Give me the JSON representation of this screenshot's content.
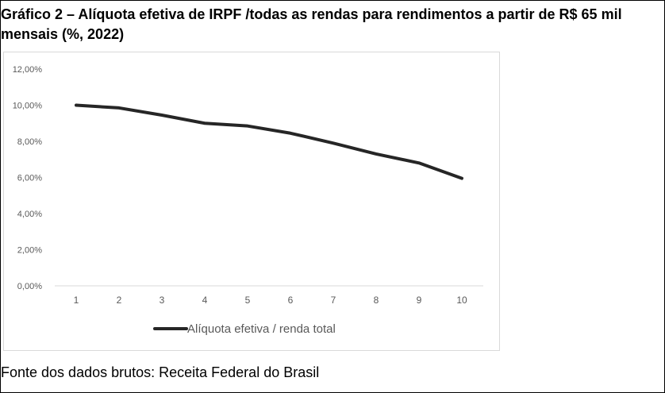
{
  "title": "Gráfico 2 – Alíquota efetiva de IRPF /todas as rendas para rendimentos a partir de R$ 65 mil mensais (%, 2022)",
  "source": "Fonte dos dados brutos: Receita Federal do Brasil",
  "colors": {
    "line": "#262626",
    "axis": "#d9d9d9",
    "text": "#595959"
  },
  "chart_data": {
    "type": "line",
    "title": "",
    "xlabel": "",
    "ylabel": "",
    "x": [
      1,
      2,
      3,
      4,
      5,
      6,
      7,
      8,
      9,
      10
    ],
    "series": [
      {
        "name": "Alíquota efetiva / renda total",
        "values": [
          10.0,
          9.85,
          9.45,
          9.0,
          8.85,
          8.45,
          7.9,
          7.3,
          6.8,
          5.95
        ]
      }
    ],
    "ylim": [
      0,
      12
    ],
    "y_ticks": [
      "0,00%",
      "2,00%",
      "4,00%",
      "6,00%",
      "8,00%",
      "10,00%",
      "12,00%"
    ],
    "x_ticks": [
      "1",
      "2",
      "3",
      "4",
      "5",
      "6",
      "7",
      "8",
      "9",
      "10"
    ],
    "grid": false,
    "legend": "bottom"
  }
}
